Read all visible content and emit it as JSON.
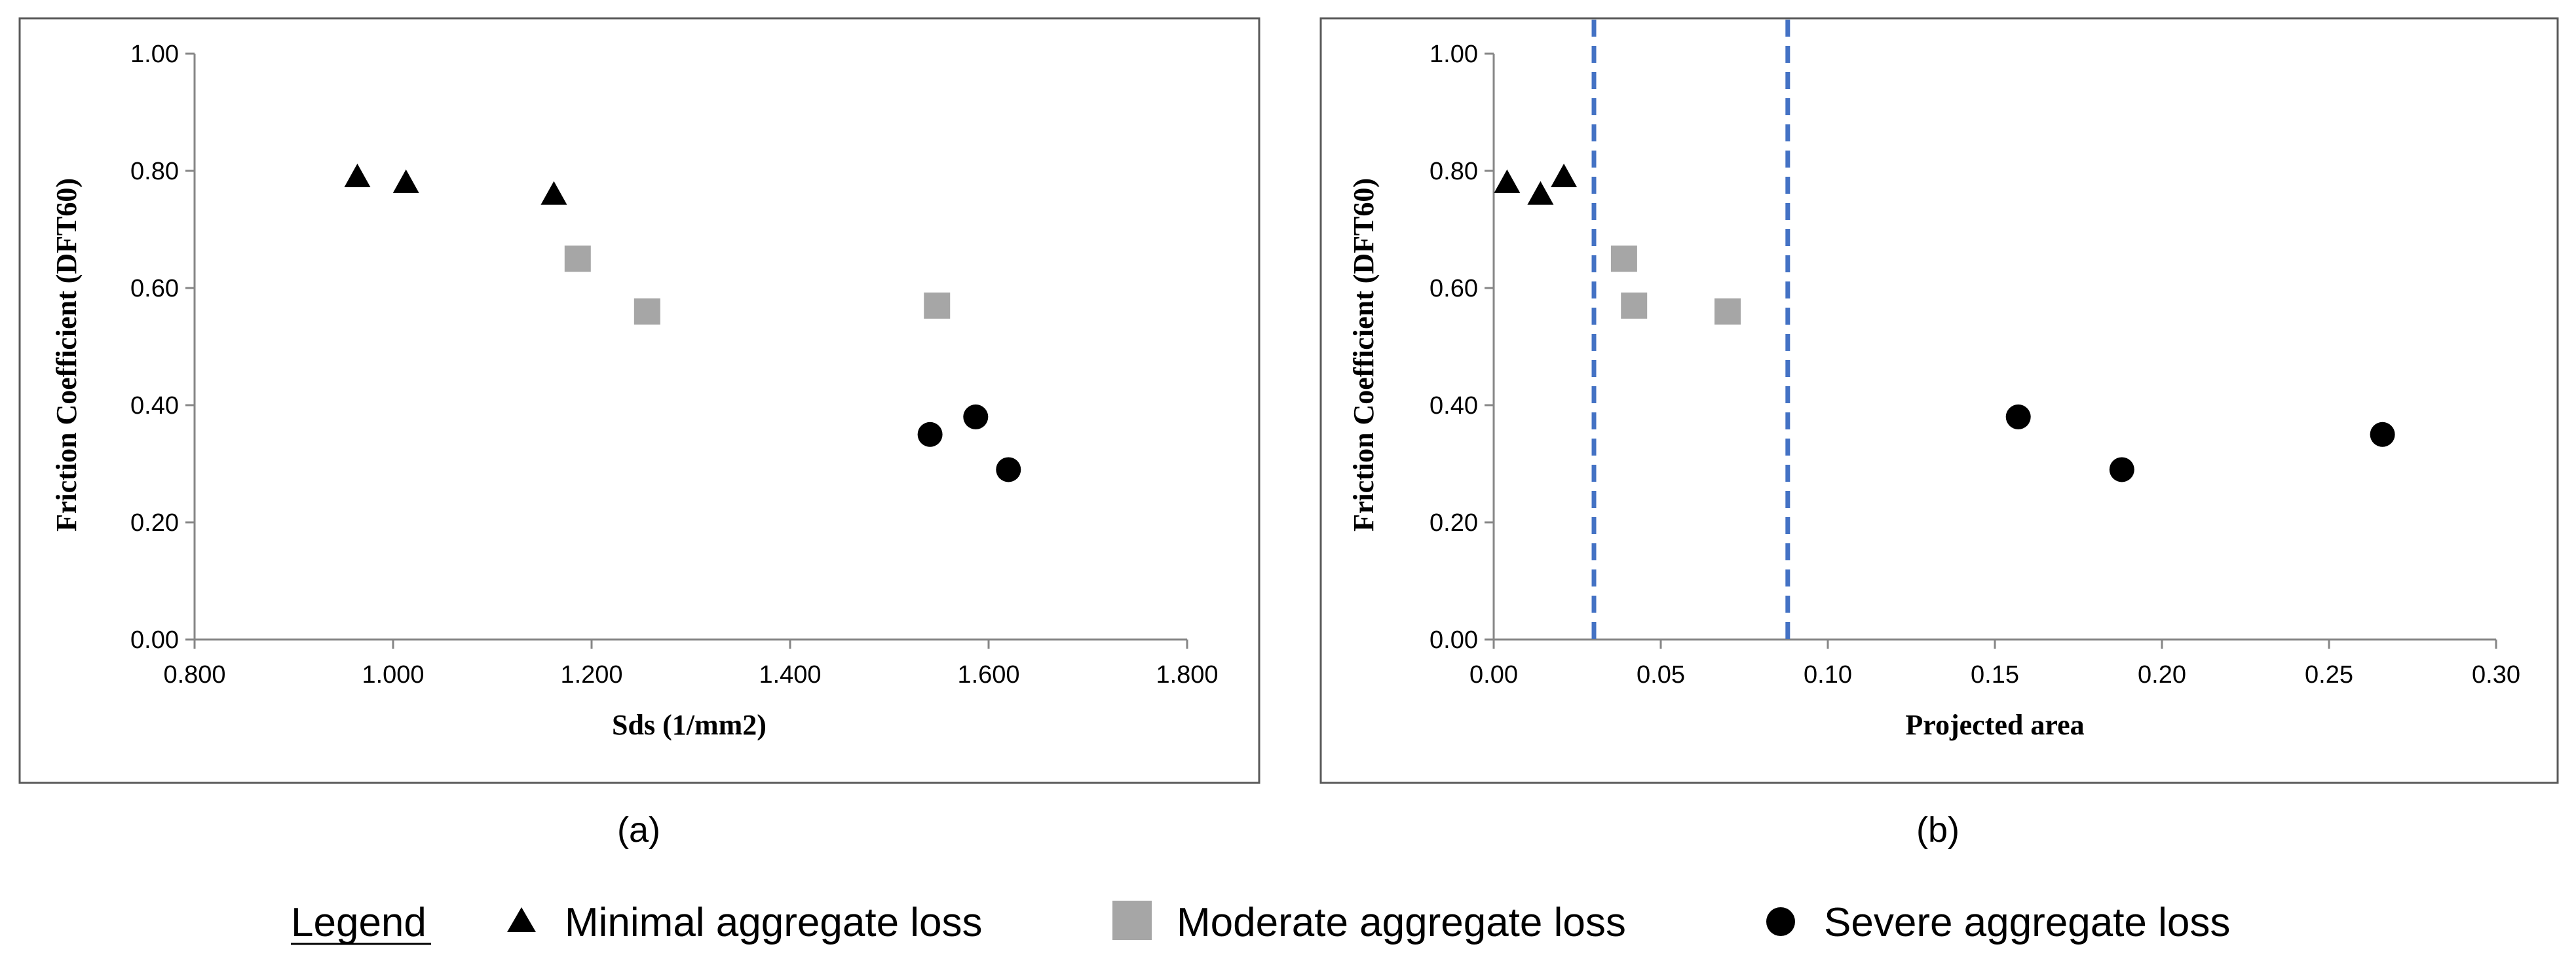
{
  "chart_data": [
    {
      "type": "scatter",
      "panel": "(a)",
      "xlabel": "Sds (1/mm2)",
      "ylabel": "Friction Coefficient (DFT60)",
      "xlim": [
        0.8,
        1.8
      ],
      "ylim": [
        0.0,
        1.0
      ],
      "xticks": [
        "0.800",
        "1.000",
        "1.200",
        "1.400",
        "1.600",
        "1.800"
      ],
      "yticks": [
        "0.00",
        "0.20",
        "0.40",
        "0.60",
        "0.80",
        "1.00"
      ],
      "x_decimals": 3,
      "vlines": [],
      "series": [
        {
          "name": "Minimal aggregate loss",
          "marker": "triangle",
          "color": "#000000",
          "points": [
            [
              0.964,
              0.79
            ],
            [
              1.013,
              0.78
            ],
            [
              1.162,
              0.76
            ]
          ]
        },
        {
          "name": "Moderate aggregate loss",
          "marker": "square",
          "color": "#a6a6a6",
          "points": [
            [
              1.186,
              0.65
            ],
            [
              1.256,
              0.56
            ],
            [
              1.548,
              0.57
            ]
          ]
        },
        {
          "name": "Severe aggregate loss",
          "marker": "circle",
          "color": "#000000",
          "points": [
            [
              1.541,
              0.35
            ],
            [
              1.587,
              0.38
            ],
            [
              1.62,
              0.29
            ]
          ]
        }
      ]
    },
    {
      "type": "scatter",
      "panel": "(b)",
      "xlabel": "Projected area",
      "ylabel": "Friction Coefficient (DFT60)",
      "xlim": [
        0.0,
        0.3
      ],
      "ylim": [
        0.0,
        1.0
      ],
      "xticks": [
        "0.00",
        "0.05",
        "0.10",
        "0.15",
        "0.20",
        "0.25",
        "0.30"
      ],
      "yticks": [
        "0.00",
        "0.20",
        "0.40",
        "0.60",
        "0.80",
        "1.00"
      ],
      "x_decimals": 2,
      "vlines": [
        {
          "x": 0.03,
          "color": "#4472c4",
          "style": "dashed"
        },
        {
          "x": 0.088,
          "color": "#4472c4",
          "style": "dashed"
        }
      ],
      "series": [
        {
          "name": "Minimal aggregate loss",
          "marker": "triangle",
          "color": "#000000",
          "points": [
            [
              0.004,
              0.78
            ],
            [
              0.014,
              0.76
            ],
            [
              0.021,
              0.79
            ]
          ]
        },
        {
          "name": "Moderate aggregate loss",
          "marker": "square",
          "color": "#a6a6a6",
          "points": [
            [
              0.039,
              0.65
            ],
            [
              0.042,
              0.57
            ],
            [
              0.07,
              0.56
            ]
          ]
        },
        {
          "name": "Severe aggregate loss",
          "marker": "circle",
          "color": "#000000",
          "points": [
            [
              0.157,
              0.38
            ],
            [
              0.188,
              0.29
            ],
            [
              0.266,
              0.35
            ]
          ]
        }
      ]
    }
  ],
  "legend": {
    "title": "Legend",
    "items": [
      {
        "label": "Minimal aggregate loss",
        "marker": "triangle",
        "color": "#000000"
      },
      {
        "label": "Moderate aggregate loss",
        "marker": "square",
        "color": "#a6a6a6"
      },
      {
        "label": "Severe aggregate loss",
        "marker": "circle",
        "color": "#000000"
      }
    ]
  },
  "colors": {
    "axis": "#868686",
    "frame": "#595959",
    "vline": "#4472c4"
  }
}
